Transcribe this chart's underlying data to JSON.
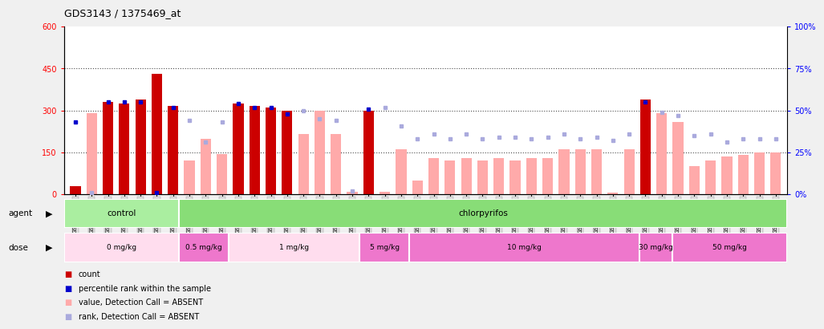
{
  "title": "GDS3143 / 1375469_at",
  "samples": [
    "GSM246129",
    "GSM246130",
    "GSM246131",
    "GSM246145",
    "GSM246146",
    "GSM246147",
    "GSM246148",
    "GSM246157",
    "GSM246158",
    "GSM246159",
    "GSM246149",
    "GSM246150",
    "GSM246151",
    "GSM246152",
    "GSM246132",
    "GSM246133",
    "GSM246134",
    "GSM246135",
    "GSM246160",
    "GSM246161",
    "GSM246162",
    "GSM246163",
    "GSM246164",
    "GSM246165",
    "GSM246166",
    "GSM246167",
    "GSM246136",
    "GSM246137",
    "GSM246138",
    "GSM246139",
    "GSM246140",
    "GSM246168",
    "GSM246169",
    "GSM246170",
    "GSM246171",
    "GSM246154",
    "GSM246155",
    "GSM246156",
    "GSM246172",
    "GSM246173",
    "GSM246141",
    "GSM246142",
    "GSM246143",
    "GSM246144"
  ],
  "count_values": [
    30,
    290,
    330,
    325,
    340,
    430,
    315,
    120,
    200,
    145,
    325,
    315,
    310,
    300,
    215,
    300,
    215,
    10,
    300,
    10,
    160,
    50,
    130,
    120,
    130,
    120,
    130,
    120,
    130,
    130,
    160,
    160,
    160,
    5,
    160,
    340,
    290,
    260,
    100,
    120,
    135,
    140,
    150,
    150
  ],
  "rank_pct": [
    43,
    1,
    55,
    55,
    55,
    1,
    52,
    44,
    31,
    43,
    54,
    52,
    52,
    48,
    50,
    45,
    44,
    2,
    51,
    52,
    41,
    33,
    36,
    33,
    36,
    33,
    34,
    34,
    33,
    34,
    36,
    33,
    34,
    32,
    36,
    55,
    49,
    47,
    35,
    36,
    31,
    33,
    33,
    33
  ],
  "detection": [
    "P",
    "A",
    "P",
    "P",
    "P",
    "P",
    "P",
    "A",
    "A",
    "A",
    "P",
    "P",
    "P",
    "P",
    "A",
    "A",
    "A",
    "A",
    "P",
    "A",
    "A",
    "A",
    "A",
    "A",
    "A",
    "A",
    "A",
    "A",
    "A",
    "A",
    "A",
    "A",
    "A",
    "A",
    "A",
    "P",
    "A",
    "A",
    "A",
    "A",
    "A",
    "A",
    "A",
    "A"
  ],
  "bar_color_present": "#cc0000",
  "bar_color_absent": "#ffaaaa",
  "dot_color_present": "#0000cc",
  "dot_color_absent": "#aaaadd",
  "agent_groups": [
    {
      "label": "control",
      "start": 0,
      "end": 7,
      "color": "#99ee88"
    },
    {
      "label": "chlorpyrifos",
      "start": 7,
      "end": 44,
      "color": "#77dd66"
    }
  ],
  "dose_groups": [
    {
      "label": "0 mg/kg",
      "start": 0,
      "end": 7,
      "color": "#ffddee"
    },
    {
      "label": "0.5 mg/kg",
      "start": 7,
      "end": 10,
      "color": "#ee88cc"
    },
    {
      "label": "1 mg/kg",
      "start": 10,
      "end": 18,
      "color": "#ffddee"
    },
    {
      "label": "5 mg/kg",
      "start": 18,
      "end": 21,
      "color": "#ee88cc"
    },
    {
      "label": "10 mg/kg",
      "start": 21,
      "end": 35,
      "color": "#ee88cc"
    },
    {
      "label": "30 mg/kg",
      "start": 35,
      "end": 37,
      "color": "#ee88cc"
    },
    {
      "label": "50 mg/kg",
      "start": 37,
      "end": 44,
      "color": "#ee88cc"
    }
  ],
  "yticks_left": [
    0,
    150,
    300,
    450,
    600
  ],
  "yticks_right": [
    0,
    25,
    50,
    75,
    100
  ],
  "hlines": [
    150,
    300,
    450
  ],
  "legend_items": [
    {
      "color": "#cc0000",
      "marker": "s",
      "label": "count"
    },
    {
      "color": "#0000cc",
      "marker": "s",
      "label": "percentile rank within the sample"
    },
    {
      "color": "#ffaaaa",
      "marker": "s",
      "label": "value, Detection Call = ABSENT"
    },
    {
      "color": "#aaaadd",
      "marker": "s",
      "label": "rank, Detection Call = ABSENT"
    }
  ]
}
